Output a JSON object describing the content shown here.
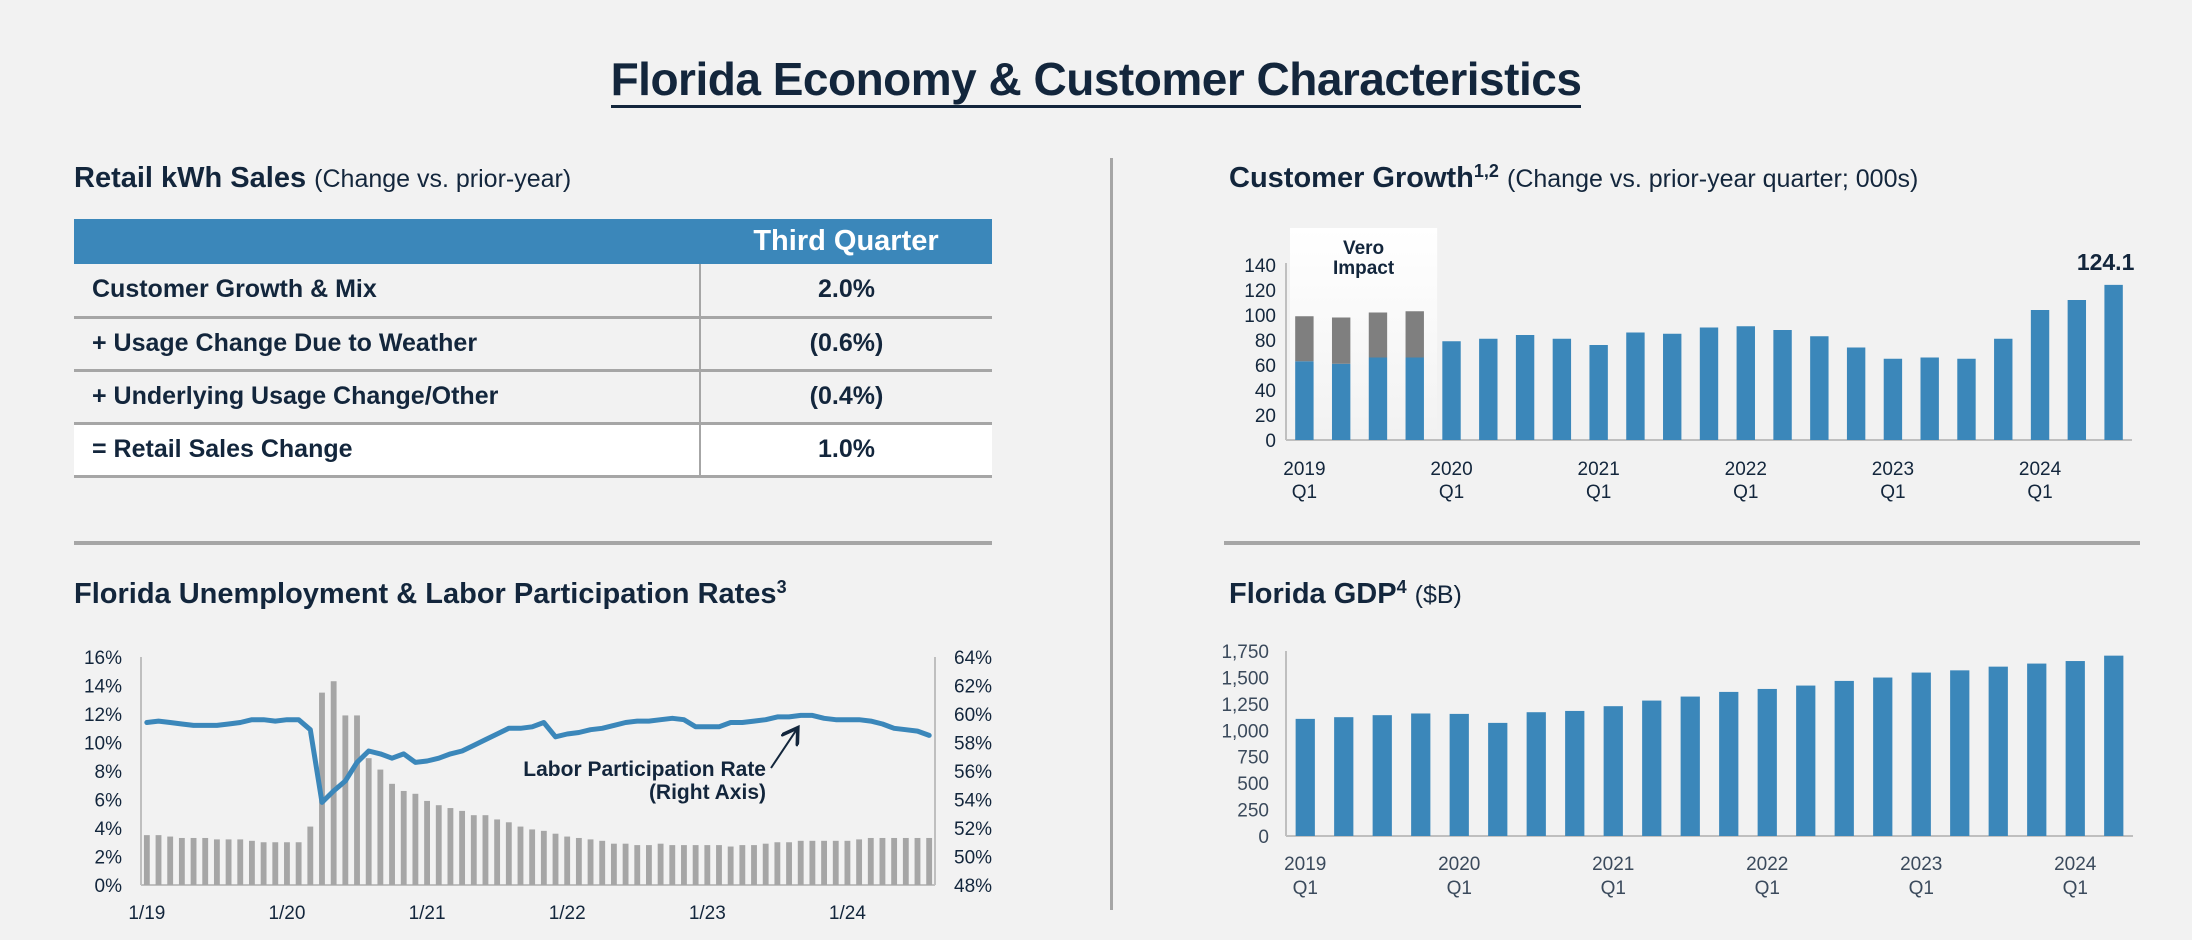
{
  "page": {
    "title": "Florida Economy & Customer Characteristics"
  },
  "retail_sales": {
    "title": "Retail kWh Sales",
    "subtitle": "(Change vs. prior-year)",
    "column_header": "Third Quarter",
    "rows": [
      {
        "label": "Customer Growth & Mix",
        "value": "2.0%"
      },
      {
        "label": "+ Usage Change Due to Weather",
        "value": "(0.6%)"
      },
      {
        "label": "+ Underlying Usage Change/Other",
        "value": "(0.4%)"
      },
      {
        "label": "= Retail Sales Change",
        "value": "1.0%"
      }
    ]
  },
  "colors": {
    "primary_blue": "#3b87ba",
    "vero_grey": "#7f7f7f",
    "unemployment_grey": "#a6a6a6",
    "text_navy": "#13263c",
    "axis_grey": "#bfbfbf",
    "background": "#f2f2f2"
  },
  "chart_data": [
    {
      "id": "customer_growth",
      "type": "bar",
      "title": "Customer Growth",
      "title_superscript": "1,2",
      "subtitle": "(Change vs. prior-year quarter; 000s)",
      "stacked": true,
      "categories": [
        "2019 Q1",
        "2019 Q2",
        "2019 Q3",
        "2019 Q4",
        "2020 Q1",
        "2020 Q2",
        "2020 Q3",
        "2020 Q4",
        "2021 Q1",
        "2021 Q2",
        "2021 Q3",
        "2021 Q4",
        "2022 Q1",
        "2022 Q2",
        "2022 Q3",
        "2022 Q4",
        "2023 Q1",
        "2023 Q2",
        "2023 Q3",
        "2023 Q4",
        "2024 Q1",
        "2024 Q2",
        "2024 Q3"
      ],
      "x_tick_labels": [
        {
          "index": 0,
          "line1": "2019",
          "line2": "Q1"
        },
        {
          "index": 4,
          "line1": "2020",
          "line2": "Q1"
        },
        {
          "index": 8,
          "line1": "2021",
          "line2": "Q1"
        },
        {
          "index": 12,
          "line1": "2022",
          "line2": "Q1"
        },
        {
          "index": 16,
          "line1": "2023",
          "line2": "Q1"
        },
        {
          "index": 20,
          "line1": "2024",
          "line2": "Q1"
        }
      ],
      "series": [
        {
          "name": "Customer Growth",
          "color": "#3b87ba",
          "values": [
            63,
            61,
            66,
            66,
            79,
            81,
            84,
            81,
            76,
            86,
            85,
            90,
            91,
            88,
            83,
            74,
            65,
            66,
            65,
            81,
            104,
            112,
            124.1
          ]
        },
        {
          "name": "Vero Impact",
          "color": "#7f7f7f",
          "values": [
            36,
            37,
            36,
            37,
            0,
            0,
            0,
            0,
            0,
            0,
            0,
            0,
            0,
            0,
            0,
            0,
            0,
            0,
            0,
            0,
            0,
            0,
            0
          ]
        }
      ],
      "annotation": {
        "text_line1": "Vero",
        "text_line2": "Impact",
        "covers_indices": [
          0,
          3
        ]
      },
      "data_label": {
        "index": 22,
        "text": "124.1"
      },
      "yticks": [
        0,
        20,
        40,
        60,
        80,
        100,
        120,
        140
      ],
      "ylim": [
        0,
        140
      ],
      "grid": false
    },
    {
      "id": "unemployment_labor",
      "type": "bar",
      "title": "Florida Unemployment & Labor Participation Rates",
      "title_superscript": "3",
      "x_start": "1/19",
      "x_end": "8/24",
      "x_tick_labels": [
        {
          "index": 0,
          "label": "1/19"
        },
        {
          "index": 12,
          "label": "1/20"
        },
        {
          "index": 24,
          "label": "1/21"
        },
        {
          "index": 36,
          "label": "1/22"
        },
        {
          "index": 48,
          "label": "1/23"
        },
        {
          "index": 60,
          "label": "1/24"
        }
      ],
      "series": [
        {
          "name": "Unemployment Rate",
          "type": "bar",
          "axis": "left",
          "color": "#a6a6a6",
          "values": [
            3.5,
            3.5,
            3.4,
            3.3,
            3.3,
            3.3,
            3.2,
            3.2,
            3.2,
            3.1,
            3.0,
            3.0,
            3.0,
            3.0,
            4.1,
            13.5,
            14.3,
            11.9,
            11.9,
            8.9,
            8.1,
            7.1,
            6.6,
            6.4,
            5.9,
            5.6,
            5.4,
            5.2,
            4.9,
            4.9,
            4.6,
            4.4,
            4.1,
            3.9,
            3.8,
            3.6,
            3.4,
            3.3,
            3.2,
            3.1,
            2.9,
            2.9,
            2.8,
            2.8,
            2.9,
            2.8,
            2.8,
            2.8,
            2.8,
            2.8,
            2.7,
            2.8,
            2.8,
            2.9,
            3.0,
            3.0,
            3.1,
            3.1,
            3.1,
            3.1,
            3.1,
            3.2,
            3.3,
            3.3,
            3.3,
            3.3,
            3.3,
            3.3
          ]
        },
        {
          "name": "Labor Participation Rate (Right Axis)",
          "type": "line",
          "axis": "right",
          "color": "#3b87ba",
          "values": [
            59.4,
            59.5,
            59.4,
            59.3,
            59.2,
            59.2,
            59.2,
            59.3,
            59.4,
            59.6,
            59.6,
            59.5,
            59.6,
            59.6,
            58.9,
            53.8,
            54.6,
            55.3,
            56.6,
            57.4,
            57.2,
            56.9,
            57.2,
            56.6,
            56.7,
            56.9,
            57.2,
            57.4,
            57.8,
            58.2,
            58.6,
            59.0,
            59.0,
            59.1,
            59.4,
            58.4,
            58.6,
            58.7,
            58.9,
            59.0,
            59.2,
            59.4,
            59.5,
            59.5,
            59.6,
            59.7,
            59.6,
            59.1,
            59.1,
            59.1,
            59.4,
            59.4,
            59.5,
            59.6,
            59.8,
            59.8,
            59.9,
            59.9,
            59.7,
            59.6,
            59.6,
            59.6,
            59.5,
            59.3,
            59.0,
            58.9,
            58.8,
            58.5
          ]
        }
      ],
      "left_yticks": [
        "0%",
        "2%",
        "4%",
        "6%",
        "8%",
        "10%",
        "12%",
        "14%",
        "16%"
      ],
      "right_yticks": [
        "48%",
        "50%",
        "52%",
        "54%",
        "56%",
        "58%",
        "60%",
        "62%",
        "64%"
      ],
      "left_ylim": [
        0,
        16
      ],
      "right_ylim": [
        48,
        64
      ],
      "annotation": {
        "line1": "Labor Participation Rate",
        "line2": "(Right Axis)",
        "arrow_target_index": 56
      },
      "grid": false
    },
    {
      "id": "florida_gdp",
      "type": "bar",
      "title": "Florida GDP",
      "title_superscript": "4",
      "subtitle": "($B)",
      "categories": [
        "2019 Q1",
        "2019 Q2",
        "2019 Q3",
        "2019 Q4",
        "2020 Q1",
        "2020 Q2",
        "2020 Q3",
        "2020 Q4",
        "2021 Q1",
        "2021 Q2",
        "2021 Q3",
        "2021 Q4",
        "2022 Q1",
        "2022 Q2",
        "2022 Q3",
        "2022 Q4",
        "2023 Q1",
        "2023 Q2",
        "2023 Q3",
        "2023 Q4",
        "2024 Q1",
        "2024 Q2"
      ],
      "x_tick_labels": [
        {
          "index": 0,
          "line1": "2019",
          "line2": "Q1"
        },
        {
          "index": 4,
          "line1": "2020",
          "line2": "Q1"
        },
        {
          "index": 8,
          "line1": "2021",
          "line2": "Q1"
        },
        {
          "index": 12,
          "line1": "2022",
          "line2": "Q1"
        },
        {
          "index": 16,
          "line1": "2023",
          "line2": "Q1"
        },
        {
          "index": 20,
          "line1": "2024",
          "line2": "Q1"
        }
      ],
      "series": [
        {
          "name": "Florida GDP",
          "color": "#3b87ba",
          "values": [
            1108,
            1124,
            1143,
            1159,
            1155,
            1070,
            1171,
            1183,
            1228,
            1281,
            1319,
            1363,
            1391,
            1423,
            1467,
            1499,
            1546,
            1567,
            1602,
            1631,
            1655,
            1706
          ]
        }
      ],
      "yticks": [
        "0",
        "250",
        "500",
        "750",
        "1,000",
        "1,250",
        "1,500",
        "1,750"
      ],
      "ylim": [
        0,
        1750
      ],
      "grid": false
    }
  ]
}
